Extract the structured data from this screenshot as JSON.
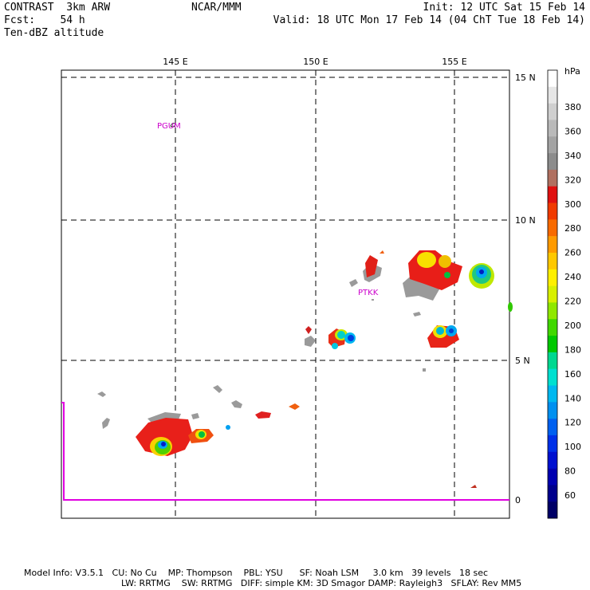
{
  "header": {
    "line1": "CONTRAST  3km ARW",
    "line2": "Fcst:    54 h",
    "line3": "Ten-dBZ altitude",
    "center": "NCAR/MMM",
    "init": "Init: 12 UTC Sat 15 Feb 14",
    "valid": "Valid: 18 UTC Mon 17 Feb 14 (04 ChT Tue 18 Feb 14)"
  },
  "map": {
    "lon_ticks": [
      "145 E",
      "150 E",
      "155 E"
    ],
    "lat_ticks": [
      "15 N",
      "10 N",
      "5 N",
      "0"
    ],
    "stations": [
      "PGUM",
      "PTKK"
    ]
  },
  "colorbar": {
    "unit": "hPa",
    "labels": [
      "380",
      "360",
      "340",
      "320",
      "300",
      "280",
      "260",
      "240",
      "220",
      "200",
      "180",
      "160",
      "140",
      "120",
      "100",
      "80",
      "60"
    ],
    "colors": [
      "#ffffff",
      "#e6e6e6",
      "#cfcfcf",
      "#b9b9b9",
      "#a3a3a3",
      "#8c8c8c",
      "#b07060",
      "#e01010",
      "#f03a00",
      "#f86a00",
      "#ff9a00",
      "#ffc800",
      "#fff000",
      "#d8f000",
      "#90e800",
      "#40d800",
      "#00c800",
      "#00d890",
      "#00e0d0",
      "#00b8f0",
      "#0090f0",
      "#0060f0",
      "#0030e8",
      "#0010d0",
      "#0000b0",
      "#00008c",
      "#000066"
    ]
  },
  "footer": {
    "line1": "Model Info: V3.5.1   CU: No Cu    MP: Thompson    PBL: YSU      SF: Noah LSM     3.0 km   39 levels   18 sec",
    "line2": "LW: RRTMG    SW: RRTMG   DIFF: simple KM: 3D Smagor DAMP: Rayleigh3   SFLAY: Rev MM5"
  }
}
